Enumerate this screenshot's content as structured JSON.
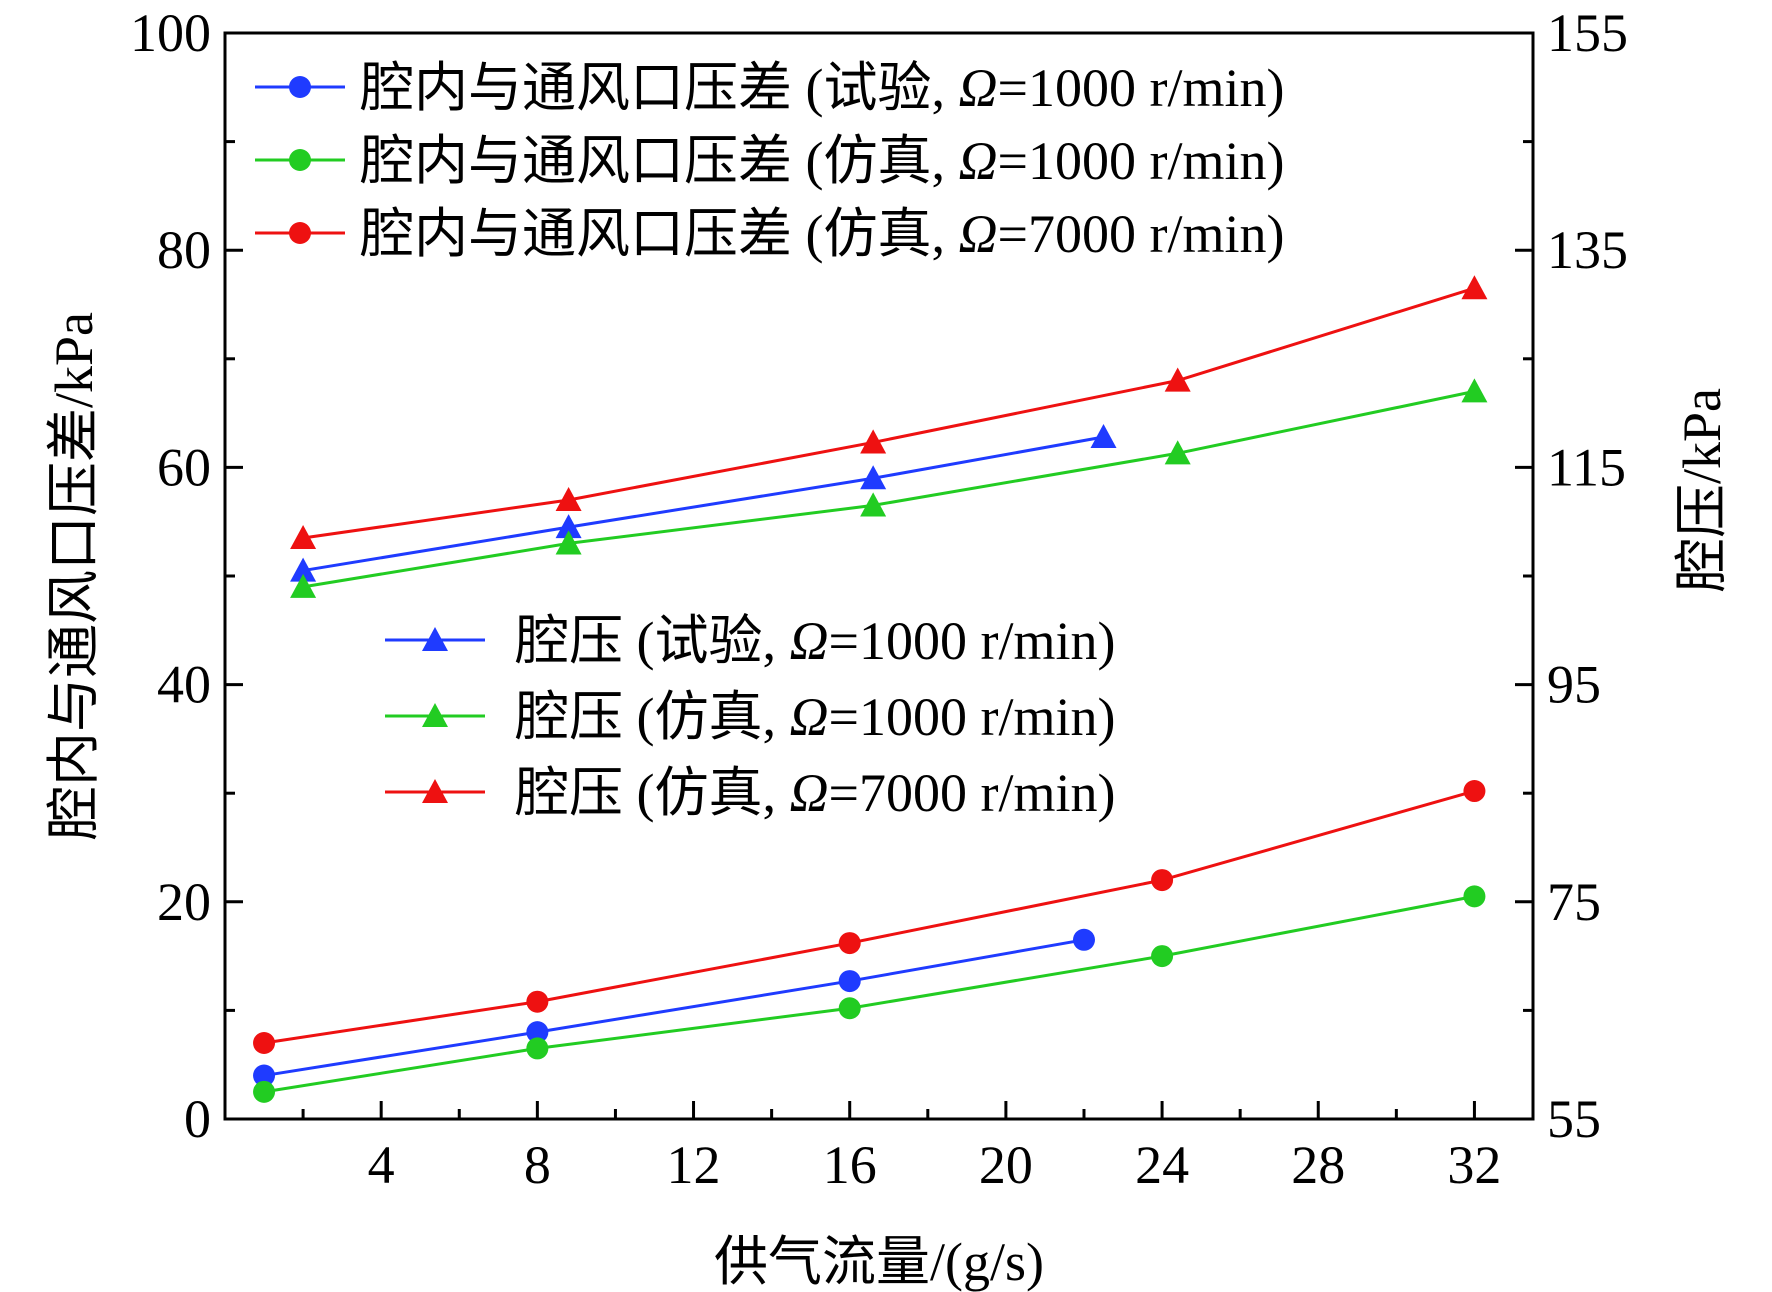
{
  "chart_data": {
    "type": "line",
    "xlabel": "供气流量/(g/s)",
    "ylabel_left": "腔内与通风口压差/kPa",
    "ylabel_right": "腔压/kPa",
    "xlim": [
      0,
      33.5
    ],
    "ylim_left": [
      0,
      100
    ],
    "ylim_right": [
      55,
      155
    ],
    "x_ticks": [
      "4",
      "8",
      "12",
      "16",
      "20",
      "24",
      "28",
      "32"
    ],
    "y_left_ticks": [
      "0",
      "20",
      "40",
      "60",
      "80",
      "100"
    ],
    "y_right_ticks": [
      "55",
      "75",
      "95",
      "115",
      "135",
      "155"
    ],
    "grid": false,
    "series": [
      {
        "name": "腔内与通风口压差 (试验, Ω=1000 r/min)",
        "label_prefix": "腔内与通风口压差 (试验, ",
        "label_omega": "Ω",
        "label_suffix": "=1000 r/min)",
        "color": "#1f3bff",
        "marker": "circle",
        "axis": "left",
        "x": [
          1,
          8,
          16,
          22
        ],
        "y": [
          4,
          8,
          12.7,
          16.5
        ]
      },
      {
        "name": "腔内与通风口压差 (仿真, Ω=1000 r/min)",
        "label_prefix": "腔内与通风口压差 (仿真, ",
        "label_omega": "Ω",
        "label_suffix": "=1000 r/min)",
        "color": "#22cc22",
        "marker": "circle",
        "axis": "left",
        "x": [
          1,
          8,
          16,
          24,
          32
        ],
        "y": [
          2.5,
          6.5,
          10.2,
          15,
          20.5
        ]
      },
      {
        "name": "腔内与通风口压差 (仿真, Ω=7000 r/min)",
        "label_prefix": "腔内与通风口压差 (仿真, ",
        "label_omega": "Ω",
        "label_suffix": "=7000 r/min)",
        "color": "#ee1111",
        "marker": "circle",
        "axis": "left",
        "x": [
          1,
          8,
          16,
          24,
          32
        ],
        "y": [
          7,
          10.8,
          16.2,
          22,
          30.2
        ]
      },
      {
        "name": "腔压 (试验, Ω=1000 r/min)",
        "label_prefix": "腔压 (试验, ",
        "label_omega": "Ω",
        "label_suffix": "=1000 r/min)",
        "color": "#1f3bff",
        "marker": "triangle",
        "axis": "right",
        "x": [
          2,
          8.8,
          16.6,
          22.5
        ],
        "y": [
          105.5,
          109.5,
          114,
          117.8
        ]
      },
      {
        "name": "腔压 (仿真, Ω=1000 r/min)",
        "label_prefix": "腔压 (仿真, ",
        "label_omega": "Ω",
        "label_suffix": "=1000 r/min)",
        "color": "#22cc22",
        "marker": "triangle",
        "axis": "right",
        "x": [
          2,
          8.8,
          16.6,
          24.4,
          32
        ],
        "y": [
          104,
          108,
          111.5,
          116.3,
          122
        ]
      },
      {
        "name": "腔压 (仿真, Ω=7000 r/min)",
        "label_prefix": "腔压 (仿真, ",
        "label_omega": "Ω",
        "label_suffix": "=7000 r/min)",
        "color": "#ee1111",
        "marker": "triangle",
        "axis": "right",
        "x": [
          2,
          8.8,
          16.6,
          24.4,
          32
        ],
        "y": [
          108.5,
          112,
          117.3,
          123,
          131.5
        ]
      }
    ],
    "legend_position": "upper-left and middle-left"
  }
}
